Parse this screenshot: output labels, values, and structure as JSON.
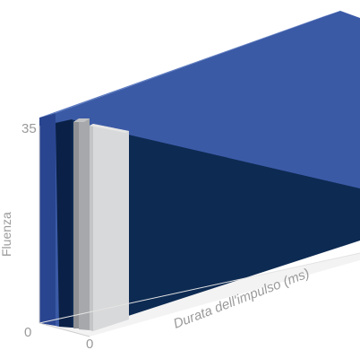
{
  "chart_data": {
    "type": "area",
    "title": "",
    "xlabel": "Durata dell'impulso (ms)",
    "ylabel": "Fluenza",
    "ylim": [
      0,
      35
    ],
    "y_ticks": [
      "0",
      "35"
    ],
    "x_ticks": [
      "0"
    ],
    "grid": false,
    "legend": "none",
    "series": [
      {
        "color": "#3b5aa6",
        "side_color": "#2a4590",
        "top_color": "#5a79c0"
      },
      {
        "color": "#0d2a52",
        "side_color": "#0a2046",
        "top_color": "#1c3a6b"
      },
      {
        "color": "#a6a8ab",
        "side_color": "#8e9093",
        "top_color": "#c2c3c5"
      },
      {
        "color": "#d8d9da",
        "side_color": "#c4c5c6",
        "top_color": "#e6e6e6"
      }
    ]
  }
}
